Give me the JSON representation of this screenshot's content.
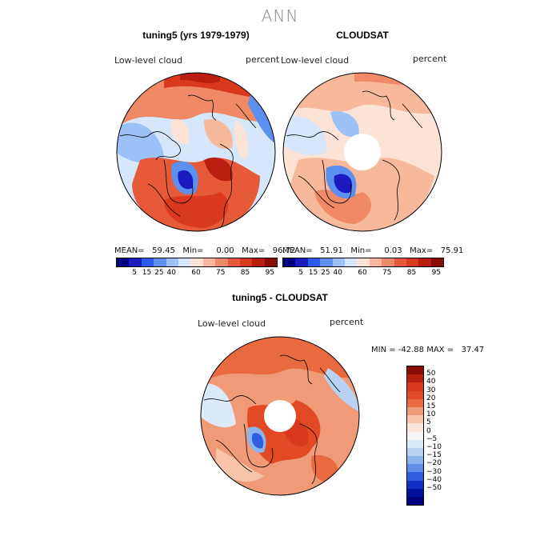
{
  "main_title": "ANN",
  "panels": [
    {
      "title": "tuning5 (yrs 1979-1979)",
      "variable": "Low-level cloud",
      "units": "percent",
      "stats": "MEAN=   59.45   Min=     0.00   Max=   96.72"
    },
    {
      "title": "CLOUDSAT",
      "variable": "Low-level cloud",
      "units": "percent",
      "stats": "MEAN=   51.91   Min=     0.03   Max=   75.91"
    },
    {
      "title": "tuning5 - CLOUDSAT",
      "variable": "Low-level cloud",
      "units": "percent",
      "stats": "MIN = -42.88 MAX =   37.47"
    }
  ],
  "colorbar_abs": {
    "colors": [
      "#00007f",
      "#1a1ac0",
      "#2e5be6",
      "#5b8ff0",
      "#9cc1f6",
      "#d6e7fb",
      "#fde3d6",
      "#f8b89b",
      "#f08a66",
      "#e65a38",
      "#d9391c",
      "#b81f10",
      "#8a0c06"
    ],
    "labels": [
      "5",
      "15",
      "25",
      "40",
      "60",
      "75",
      "85",
      "95"
    ]
  },
  "colorbar_diff": {
    "colors": [
      "#8a0c06",
      "#b81f10",
      "#d9391c",
      "#e14a25",
      "#ea6a40",
      "#f19a78",
      "#f8c4aa",
      "#fbe5d9",
      "#f5f5f5",
      "#dce9f8",
      "#b8d2f3",
      "#8eb4ee",
      "#5f8de9",
      "#2f5fe0",
      "#1030c8",
      "#0010a0",
      "#00007f"
    ],
    "labels": [
      "50",
      "40",
      "30",
      "20",
      "15",
      "10",
      "5",
      "0",
      "−5",
      "−10",
      "−15",
      "−20",
      "−30",
      "−40",
      "−50"
    ]
  }
}
